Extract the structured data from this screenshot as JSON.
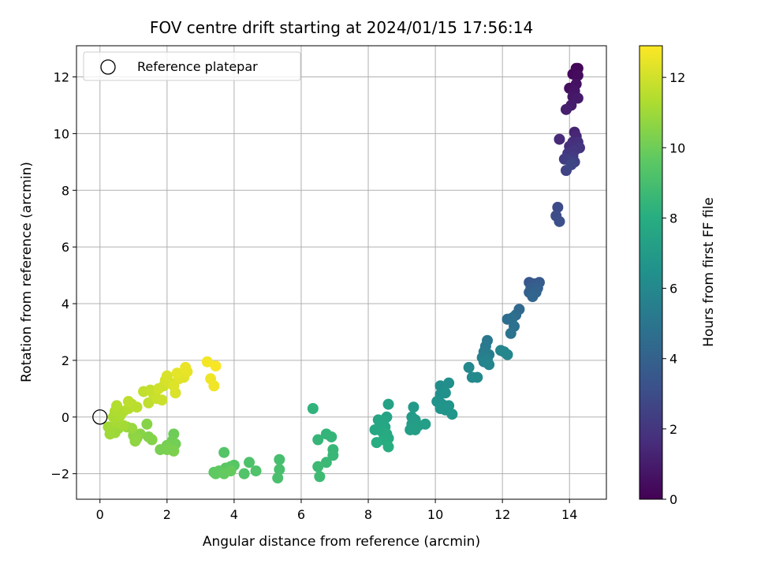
{
  "chart_data": {
    "type": "scatter",
    "title": "FOV centre drift starting at 2024/01/15 17:56:14",
    "xlabel": "Angular distance from reference (arcmin)",
    "ylabel": "Rotation from reference (arcmin)",
    "xlim": [
      -0.7,
      15.1
    ],
    "ylim": [
      -2.9,
      13.1
    ],
    "xticks": [
      0,
      2,
      4,
      6,
      8,
      10,
      12,
      14
    ],
    "yticks": [
      -2,
      0,
      2,
      4,
      6,
      8,
      10,
      12
    ],
    "grid": true,
    "legend": {
      "location": "upper-left",
      "entries": [
        "Reference platepar"
      ]
    },
    "reference_point": {
      "x": 0,
      "y": 0
    },
    "colorbar": {
      "label": "Hours from first FF file",
      "range": [
        0,
        12.9
      ],
      "ticks": [
        0,
        2,
        4,
        6,
        8,
        10,
        12
      ],
      "colormap": "viridis"
    },
    "points": [
      {
        "x": 14.2,
        "y": 12.3,
        "c": 0.1
      },
      {
        "x": 14.25,
        "y": 12.3,
        "c": 0.2
      },
      {
        "x": 14.1,
        "y": 12.1,
        "c": 0.3
      },
      {
        "x": 14.25,
        "y": 12.05,
        "c": 0.4
      },
      {
        "x": 14.0,
        "y": 11.6,
        "c": 0.5
      },
      {
        "x": 14.2,
        "y": 11.75,
        "c": 0.6
      },
      {
        "x": 14.15,
        "y": 11.5,
        "c": 0.7
      },
      {
        "x": 14.1,
        "y": 11.3,
        "c": 0.8
      },
      {
        "x": 14.25,
        "y": 11.25,
        "c": 0.9
      },
      {
        "x": 14.05,
        "y": 11.0,
        "c": 1.0
      },
      {
        "x": 13.9,
        "y": 10.85,
        "c": 1.1
      },
      {
        "x": 14.15,
        "y": 10.05,
        "c": 1.3
      },
      {
        "x": 14.2,
        "y": 9.9,
        "c": 1.4
      },
      {
        "x": 13.7,
        "y": 9.8,
        "c": 1.5
      },
      {
        "x": 14.1,
        "y": 9.7,
        "c": 1.6
      },
      {
        "x": 14.25,
        "y": 9.7,
        "c": 1.7
      },
      {
        "x": 14.0,
        "y": 9.55,
        "c": 1.8
      },
      {
        "x": 14.3,
        "y": 9.5,
        "c": 1.9
      },
      {
        "x": 14.15,
        "y": 9.4,
        "c": 2.0
      },
      {
        "x": 13.95,
        "y": 9.3,
        "c": 2.1
      },
      {
        "x": 14.1,
        "y": 9.2,
        "c": 2.2
      },
      {
        "x": 13.85,
        "y": 9.1,
        "c": 2.3
      },
      {
        "x": 14.0,
        "y": 9.05,
        "c": 2.4
      },
      {
        "x": 14.15,
        "y": 9.0,
        "c": 2.5
      },
      {
        "x": 13.9,
        "y": 8.7,
        "c": 2.6
      },
      {
        "x": 14.05,
        "y": 8.9,
        "c": 2.7
      },
      {
        "x": 13.65,
        "y": 7.4,
        "c": 2.9
      },
      {
        "x": 13.6,
        "y": 7.1,
        "c": 3.0
      },
      {
        "x": 13.7,
        "y": 6.9,
        "c": 3.1
      },
      {
        "x": 12.8,
        "y": 4.75,
        "c": 3.5
      },
      {
        "x": 12.95,
        "y": 4.7,
        "c": 3.6
      },
      {
        "x": 13.1,
        "y": 4.75,
        "c": 3.7
      },
      {
        "x": 12.85,
        "y": 4.55,
        "c": 3.8
      },
      {
        "x": 13.05,
        "y": 4.55,
        "c": 3.9
      },
      {
        "x": 12.8,
        "y": 4.4,
        "c": 4.0
      },
      {
        "x": 13.0,
        "y": 4.4,
        "c": 4.1
      },
      {
        "x": 12.9,
        "y": 4.25,
        "c": 4.2
      },
      {
        "x": 12.5,
        "y": 3.8,
        "c": 4.4
      },
      {
        "x": 12.4,
        "y": 3.6,
        "c": 4.5
      },
      {
        "x": 12.15,
        "y": 3.45,
        "c": 4.6
      },
      {
        "x": 12.3,
        "y": 3.5,
        "c": 4.7
      },
      {
        "x": 12.35,
        "y": 3.2,
        "c": 4.8
      },
      {
        "x": 12.25,
        "y": 2.95,
        "c": 4.9
      },
      {
        "x": 11.55,
        "y": 2.7,
        "c": 5.1
      },
      {
        "x": 11.5,
        "y": 2.5,
        "c": 5.2
      },
      {
        "x": 11.45,
        "y": 2.3,
        "c": 5.3
      },
      {
        "x": 11.6,
        "y": 2.2,
        "c": 5.4
      },
      {
        "x": 11.4,
        "y": 2.1,
        "c": 5.5
      },
      {
        "x": 11.55,
        "y": 2.05,
        "c": 5.6
      },
      {
        "x": 11.45,
        "y": 1.95,
        "c": 5.7
      },
      {
        "x": 11.6,
        "y": 1.85,
        "c": 5.8
      },
      {
        "x": 11.95,
        "y": 2.35,
        "c": 5.85
      },
      {
        "x": 12.05,
        "y": 2.3,
        "c": 5.9
      },
      {
        "x": 12.15,
        "y": 2.2,
        "c": 5.95
      },
      {
        "x": 11.0,
        "y": 1.75,
        "c": 6.0
      },
      {
        "x": 11.1,
        "y": 1.4,
        "c": 6.05
      },
      {
        "x": 11.25,
        "y": 1.4,
        "c": 6.1
      },
      {
        "x": 10.15,
        "y": 1.1,
        "c": 6.3
      },
      {
        "x": 10.4,
        "y": 1.2,
        "c": 6.35
      },
      {
        "x": 10.15,
        "y": 0.8,
        "c": 6.4
      },
      {
        "x": 10.3,
        "y": 0.85,
        "c": 6.45
      },
      {
        "x": 10.05,
        "y": 0.55,
        "c": 6.5
      },
      {
        "x": 10.2,
        "y": 0.45,
        "c": 6.55
      },
      {
        "x": 10.4,
        "y": 0.4,
        "c": 6.6
      },
      {
        "x": 10.15,
        "y": 0.3,
        "c": 6.65
      },
      {
        "x": 10.3,
        "y": 0.25,
        "c": 6.7
      },
      {
        "x": 10.5,
        "y": 0.1,
        "c": 6.75
      },
      {
        "x": 9.35,
        "y": 0.35,
        "c": 6.9
      },
      {
        "x": 9.3,
        "y": 0.0,
        "c": 6.95
      },
      {
        "x": 9.4,
        "y": -0.1,
        "c": 7.0
      },
      {
        "x": 9.3,
        "y": -0.25,
        "c": 7.05
      },
      {
        "x": 9.5,
        "y": -0.3,
        "c": 7.1
      },
      {
        "x": 9.7,
        "y": -0.25,
        "c": 7.15
      },
      {
        "x": 9.25,
        "y": -0.45,
        "c": 7.2
      },
      {
        "x": 9.4,
        "y": -0.45,
        "c": 7.25
      },
      {
        "x": 8.6,
        "y": 0.45,
        "c": 7.4
      },
      {
        "x": 8.55,
        "y": 0.0,
        "c": 7.45
      },
      {
        "x": 8.3,
        "y": -0.1,
        "c": 7.5
      },
      {
        "x": 8.45,
        "y": -0.15,
        "c": 7.55
      },
      {
        "x": 8.35,
        "y": -0.3,
        "c": 7.6
      },
      {
        "x": 8.5,
        "y": -0.35,
        "c": 7.65
      },
      {
        "x": 8.2,
        "y": -0.45,
        "c": 7.7
      },
      {
        "x": 8.4,
        "y": -0.5,
        "c": 7.75
      },
      {
        "x": 8.55,
        "y": -0.6,
        "c": 7.8
      },
      {
        "x": 8.6,
        "y": -0.75,
        "c": 7.85
      },
      {
        "x": 8.45,
        "y": -0.8,
        "c": 7.9
      },
      {
        "x": 8.25,
        "y": -0.9,
        "c": 7.95
      },
      {
        "x": 8.6,
        "y": -1.05,
        "c": 8.0
      },
      {
        "x": 6.35,
        "y": 0.3,
        "c": 8.3
      },
      {
        "x": 6.75,
        "y": -0.6,
        "c": 8.4
      },
      {
        "x": 6.9,
        "y": -0.7,
        "c": 8.45
      },
      {
        "x": 6.5,
        "y": -0.8,
        "c": 8.5
      },
      {
        "x": 6.95,
        "y": -1.15,
        "c": 8.55
      },
      {
        "x": 6.95,
        "y": -1.35,
        "c": 8.6
      },
      {
        "x": 6.75,
        "y": -1.6,
        "c": 8.65
      },
      {
        "x": 6.5,
        "y": -1.75,
        "c": 8.7
      },
      {
        "x": 6.55,
        "y": -2.1,
        "c": 8.75
      },
      {
        "x": 5.35,
        "y": -1.5,
        "c": 9.0
      },
      {
        "x": 5.35,
        "y": -1.85,
        "c": 9.05
      },
      {
        "x": 5.3,
        "y": -2.15,
        "c": 9.1
      },
      {
        "x": 4.45,
        "y": -1.6,
        "c": 9.2
      },
      {
        "x": 4.65,
        "y": -1.9,
        "c": 9.25
      },
      {
        "x": 4.3,
        "y": -2.0,
        "c": 9.3
      },
      {
        "x": 3.7,
        "y": -1.25,
        "c": 9.4
      },
      {
        "x": 4.0,
        "y": -1.7,
        "c": 9.45
      },
      {
        "x": 3.9,
        "y": -1.75,
        "c": 9.5
      },
      {
        "x": 3.75,
        "y": -1.8,
        "c": 9.55
      },
      {
        "x": 3.4,
        "y": -1.95,
        "c": 9.6
      },
      {
        "x": 3.55,
        "y": -1.9,
        "c": 9.65
      },
      {
        "x": 3.45,
        "y": -2.0,
        "c": 9.7
      },
      {
        "x": 3.7,
        "y": -2.0,
        "c": 9.75
      },
      {
        "x": 3.9,
        "y": -1.9,
        "c": 9.8
      },
      {
        "x": 2.2,
        "y": -0.6,
        "c": 10.0
      },
      {
        "x": 2.15,
        "y": -0.85,
        "c": 10.05
      },
      {
        "x": 2.25,
        "y": -0.95,
        "c": 10.1
      },
      {
        "x": 2.0,
        "y": -1.0,
        "c": 10.15
      },
      {
        "x": 1.8,
        "y": -1.15,
        "c": 10.2
      },
      {
        "x": 2.0,
        "y": -1.15,
        "c": 10.25
      },
      {
        "x": 2.2,
        "y": -1.2,
        "c": 10.3
      },
      {
        "x": 1.45,
        "y": -0.7,
        "c": 10.4
      },
      {
        "x": 1.55,
        "y": -0.8,
        "c": 10.45
      },
      {
        "x": 1.4,
        "y": -0.25,
        "c": 10.5
      },
      {
        "x": 1.2,
        "y": -0.6,
        "c": 10.55
      },
      {
        "x": 1.0,
        "y": -0.65,
        "c": 10.6
      },
      {
        "x": 1.1,
        "y": -0.75,
        "c": 10.65
      },
      {
        "x": 1.05,
        "y": -0.85,
        "c": 10.7
      },
      {
        "x": 0.8,
        "y": -0.35,
        "c": 10.8
      },
      {
        "x": 0.95,
        "y": -0.4,
        "c": 10.85
      },
      {
        "x": 0.55,
        "y": -0.4,
        "c": 10.9
      },
      {
        "x": 0.45,
        "y": -0.55,
        "c": 10.95
      },
      {
        "x": 0.3,
        "y": -0.6,
        "c": 11.0
      },
      {
        "x": 0.25,
        "y": -0.35,
        "c": 11.05
      },
      {
        "x": 0.7,
        "y": -0.3,
        "c": 11.1
      },
      {
        "x": 0.5,
        "y": -0.2,
        "c": 11.15
      },
      {
        "x": 0.4,
        "y": 0.0,
        "c": 11.2
      },
      {
        "x": 0.6,
        "y": 0.05,
        "c": 11.25
      },
      {
        "x": 0.45,
        "y": 0.2,
        "c": 11.3
      },
      {
        "x": 0.7,
        "y": 0.2,
        "c": 11.35
      },
      {
        "x": 0.5,
        "y": 0.4,
        "c": 11.4
      },
      {
        "x": 0.85,
        "y": 0.3,
        "c": 11.45
      },
      {
        "x": 0.95,
        "y": 0.45,
        "c": 11.5
      },
      {
        "x": 1.1,
        "y": 0.35,
        "c": 11.55
      },
      {
        "x": 0.85,
        "y": 0.55,
        "c": 11.6
      },
      {
        "x": 1.45,
        "y": 0.5,
        "c": 11.65
      },
      {
        "x": 1.3,
        "y": 0.9,
        "c": 11.7
      },
      {
        "x": 1.5,
        "y": 0.95,
        "c": 11.75
      },
      {
        "x": 1.6,
        "y": 0.8,
        "c": 11.8
      },
      {
        "x": 1.7,
        "y": 0.65,
        "c": 11.85
      },
      {
        "x": 1.85,
        "y": 0.6,
        "c": 11.9
      },
      {
        "x": 1.75,
        "y": 1.0,
        "c": 11.95
      },
      {
        "x": 1.9,
        "y": 1.1,
        "c": 12.0
      },
      {
        "x": 1.95,
        "y": 1.3,
        "c": 12.05
      },
      {
        "x": 2.05,
        "y": 1.25,
        "c": 12.1
      },
      {
        "x": 2.0,
        "y": 1.45,
        "c": 12.15
      },
      {
        "x": 2.25,
        "y": 0.85,
        "c": 12.2
      },
      {
        "x": 2.2,
        "y": 1.1,
        "c": 12.25
      },
      {
        "x": 2.35,
        "y": 1.35,
        "c": 12.3
      },
      {
        "x": 2.5,
        "y": 1.4,
        "c": 12.35
      },
      {
        "x": 2.3,
        "y": 1.55,
        "c": 12.4
      },
      {
        "x": 2.6,
        "y": 1.6,
        "c": 12.45
      },
      {
        "x": 2.55,
        "y": 1.75,
        "c": 12.5
      },
      {
        "x": 3.3,
        "y": 1.35,
        "c": 12.6
      },
      {
        "x": 3.4,
        "y": 1.1,
        "c": 12.65
      },
      {
        "x": 3.2,
        "y": 1.95,
        "c": 12.7
      },
      {
        "x": 3.45,
        "y": 1.8,
        "c": 12.8
      }
    ]
  }
}
